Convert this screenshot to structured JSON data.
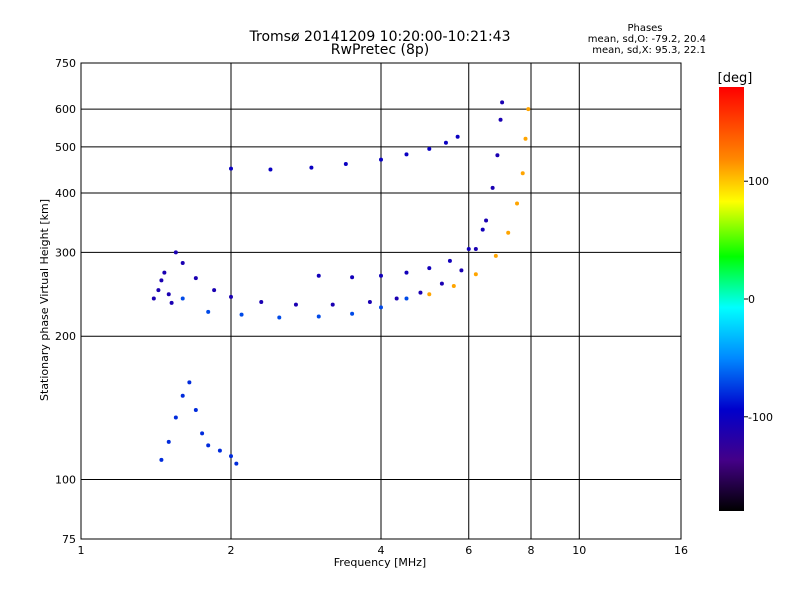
{
  "chart_data": {
    "type": "scatter",
    "title": "Tromsø 20141209 10:20:00-10:21:43",
    "subtitle": "RwPretec (8p)",
    "xlabel": "Frequency [MHz]",
    "ylabel": "Stationary phase Virtual Height [km]",
    "x_scale": "log",
    "y_scale": "log",
    "xlim": [
      1,
      16
    ],
    "ylim": [
      75,
      750
    ],
    "x_ticks": [
      1,
      2,
      4,
      6,
      8,
      10,
      16
    ],
    "y_ticks": [
      75,
      100,
      200,
      300,
      400,
      500,
      600,
      750
    ],
    "grid": true,
    "phase_stats": {
      "title": "Phases",
      "o_mode": "mean, sd,O: -79.2, 20.4",
      "x_mode": "mean, sd,X:  95.3, 22.1"
    },
    "colorbar": {
      "label": "[deg]",
      "range": [
        -180,
        180
      ],
      "ticks": [
        100,
        0,
        -100
      ]
    },
    "series": [
      {
        "color_phase": -110,
        "points": [
          [
            1.4,
            240
          ],
          [
            1.43,
            250
          ],
          [
            1.45,
            262
          ],
          [
            1.47,
            272
          ],
          [
            1.5,
            245
          ],
          [
            1.52,
            235
          ],
          [
            1.55,
            300
          ],
          [
            1.6,
            285
          ],
          [
            1.7,
            265
          ],
          [
            1.85,
            250
          ],
          [
            2.0,
            242
          ],
          [
            2.3,
            236
          ],
          [
            2.7,
            233
          ],
          [
            3.2,
            233
          ],
          [
            3.8,
            236
          ],
          [
            4.3,
            240
          ],
          [
            4.8,
            247
          ],
          [
            5.3,
            258
          ],
          [
            5.8,
            275
          ],
          [
            6.2,
            305
          ],
          [
            6.5,
            350
          ],
          [
            6.7,
            410
          ],
          [
            6.85,
            480
          ],
          [
            6.95,
            570
          ],
          [
            7.0,
            620
          ]
        ]
      },
      {
        "color_phase": -70,
        "points": [
          [
            1.6,
            240
          ],
          [
            1.8,
            225
          ],
          [
            2.1,
            222
          ],
          [
            2.5,
            219
          ],
          [
            3.0,
            220
          ],
          [
            3.5,
            223
          ],
          [
            4.0,
            230
          ],
          [
            4.5,
            240
          ]
        ]
      },
      {
        "color_phase": -100,
        "points": [
          [
            2.0,
            450
          ],
          [
            2.4,
            448
          ],
          [
            2.9,
            452
          ],
          [
            3.4,
            460
          ],
          [
            4.0,
            470
          ],
          [
            4.5,
            482
          ],
          [
            5.0,
            495
          ],
          [
            5.4,
            510
          ],
          [
            5.7,
            525
          ]
        ]
      },
      {
        "color_phase": -105,
        "points": [
          [
            3.0,
            268
          ],
          [
            3.5,
            266
          ],
          [
            4.0,
            268
          ],
          [
            4.5,
            272
          ],
          [
            5.0,
            278
          ],
          [
            5.5,
            288
          ],
          [
            6.0,
            305
          ],
          [
            6.4,
            335
          ]
        ]
      },
      {
        "color_phase": 110,
        "points": [
          [
            5.0,
            245
          ],
          [
            5.6,
            255
          ],
          [
            6.2,
            270
          ],
          [
            6.8,
            295
          ],
          [
            7.2,
            330
          ],
          [
            7.5,
            380
          ],
          [
            7.7,
            440
          ],
          [
            7.8,
            520
          ],
          [
            7.9,
            600
          ]
        ]
      },
      {
        "color_phase": -80,
        "points": [
          [
            1.45,
            110
          ],
          [
            1.5,
            120
          ],
          [
            1.55,
            135
          ],
          [
            1.6,
            150
          ],
          [
            1.65,
            160
          ],
          [
            1.7,
            140
          ],
          [
            1.75,
            125
          ],
          [
            1.8,
            118
          ],
          [
            1.9,
            115
          ],
          [
            2.0,
            112
          ],
          [
            2.05,
            108
          ]
        ]
      }
    ]
  }
}
